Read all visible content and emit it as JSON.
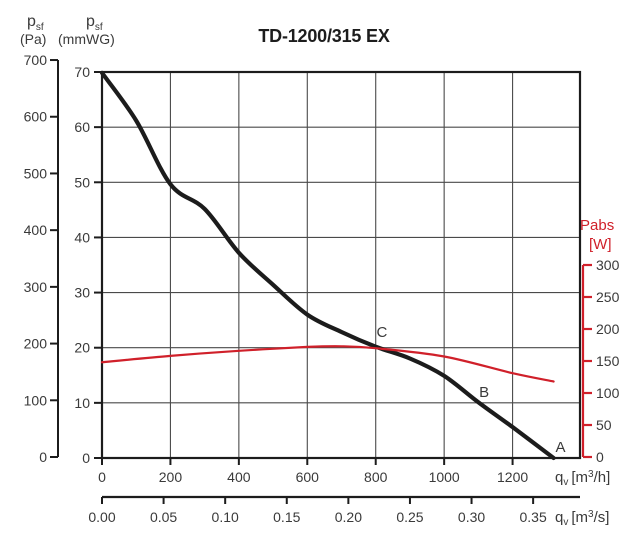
{
  "title": "TD-1200/315 EX",
  "axes": {
    "pressure_pa": {
      "sym": "p",
      "sub": "sf",
      "unit": "(Pa)",
      "ticks": [
        "0",
        "100",
        "200",
        "300",
        "400",
        "500",
        "600",
        "700"
      ]
    },
    "pressure_mmwg": {
      "sym": "p",
      "sub": "sf",
      "unit": "(mmWG)",
      "ticks": [
        "0",
        "10",
        "20",
        "30",
        "40",
        "50",
        "60",
        "70"
      ]
    },
    "power": {
      "name": "Pabs",
      "unit": "[W]",
      "ticks": [
        "0",
        "50",
        "100",
        "150",
        "200",
        "250",
        "300"
      ]
    },
    "flow_m3h": {
      "sym": "q",
      "sub": "v",
      "unit_pre": "[m",
      "unit_sup": "3",
      "unit_post": "/h]",
      "ticks": [
        "0",
        "200",
        "400",
        "600",
        "800",
        "1000",
        "1200"
      ]
    },
    "flow_m3s": {
      "sym": "q",
      "sub": "v",
      "unit_pre": "[m",
      "unit_sup": "3",
      "unit_post": "/s]",
      "ticks": [
        "0.00",
        "0.05",
        "0.10",
        "0.15",
        "0.20",
        "0.25",
        "0.30",
        "0.35"
      ]
    }
  },
  "colors": {
    "pressure_curve": "#1c1c1c",
    "power_curve": "#d0202a",
    "grid": "#4a4a4a",
    "axis": "#1c1c1c",
    "text": "#3a3a3a"
  },
  "chart_data": {
    "type": "line",
    "title": "TD-1200/315 EX",
    "x_axis": {
      "label": "qv [m³/h]",
      "range": [
        0,
        1397
      ],
      "ticks": [
        0,
        200,
        400,
        600,
        800,
        1000,
        1200
      ]
    },
    "x_axis_secondary": {
      "label": "qv [m³/s]",
      "range": [
        0,
        0.388
      ],
      "ticks": [
        0,
        0.05,
        0.1,
        0.15,
        0.2,
        0.25,
        0.3,
        0.35
      ]
    },
    "y_axis_left_pa": {
      "label": "psf (Pa)",
      "range": [
        0,
        686
      ],
      "ticks": [
        0,
        100,
        200,
        300,
        400,
        500,
        600,
        700
      ]
    },
    "y_axis_left_mmwg": {
      "label": "psf (mmWG)",
      "range": [
        0,
        70
      ],
      "ticks": [
        0,
        10,
        20,
        30,
        40,
        50,
        60,
        70
      ]
    },
    "y_axis_right": {
      "label": "Pabs [W]",
      "range": [
        0,
        300
      ],
      "ticks": [
        0,
        50,
        100,
        150,
        200,
        250,
        300
      ]
    },
    "grid": true,
    "legend": false,
    "series": [
      {
        "name": "pressure",
        "units": {
          "x": "m³/h",
          "y": "Pa"
        },
        "color": "#1c1c1c",
        "points": [
          [
            0,
            685
          ],
          [
            100,
            600
          ],
          [
            200,
            487
          ],
          [
            300,
            443
          ],
          [
            400,
            365
          ],
          [
            500,
            308
          ],
          [
            600,
            255
          ],
          [
            700,
            224
          ],
          [
            800,
            198
          ],
          [
            900,
            177
          ],
          [
            1000,
            146
          ],
          [
            1100,
            99
          ],
          [
            1200,
            55
          ],
          [
            1320,
            0
          ]
        ]
      },
      {
        "name": "absorbed_power",
        "units": {
          "x": "m³/h",
          "y": "W"
        },
        "color": "#d0202a",
        "points": [
          [
            0,
            148
          ],
          [
            200,
            158
          ],
          [
            400,
            166
          ],
          [
            600,
            172
          ],
          [
            700,
            173
          ],
          [
            800,
            170
          ],
          [
            1000,
            157
          ],
          [
            1200,
            131
          ],
          [
            1320,
            118
          ]
        ]
      }
    ],
    "annotations": [
      {
        "label": "A",
        "q_m3h": 1340,
        "p_pa": 20
      },
      {
        "label": "B",
        "q_m3h": 1117,
        "p_pa": 117
      },
      {
        "label": "C",
        "q_m3h": 818,
        "p_pa": 224
      }
    ]
  }
}
